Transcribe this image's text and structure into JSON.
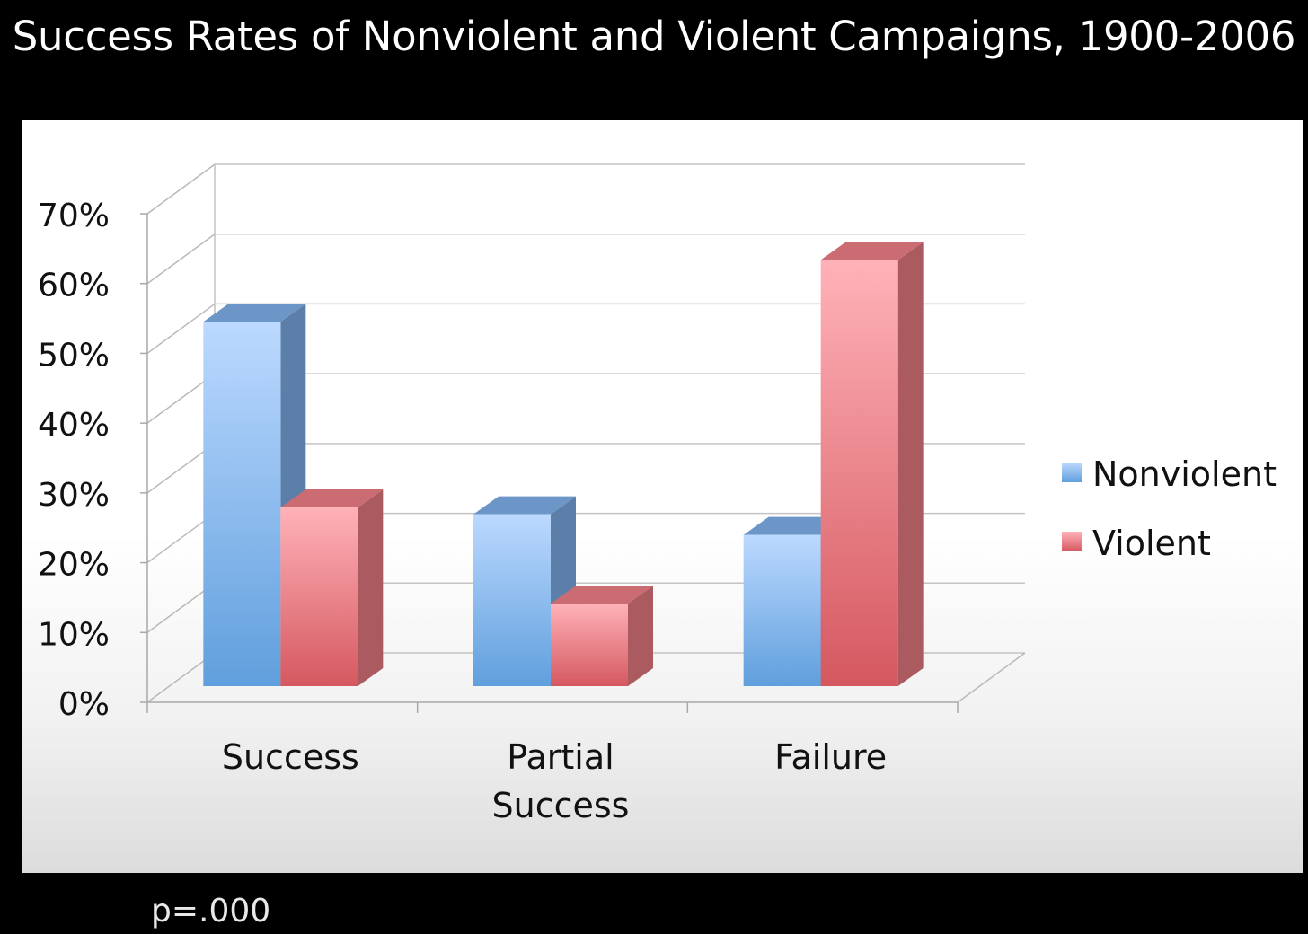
{
  "chart_data": {
    "type": "bar",
    "title": "Success Rates of Nonviolent and Violent Campaigns, 1900-2006",
    "categories": [
      "Success",
      "Partial\nSuccess",
      "Failure"
    ],
    "series": [
      {
        "name": "Nonviolent",
        "values": [
          53,
          25,
          22
        ],
        "color": "#7fb0ea"
      },
      {
        "name": "Violent",
        "values": [
          26,
          12,
          62
        ],
        "color": "#ee7f85"
      }
    ],
    "yticks": [
      "0%",
      "10%",
      "20%",
      "30%",
      "40%",
      "50%",
      "60%",
      "70%"
    ],
    "ylim": [
      0,
      70
    ],
    "grid": true,
    "legend": "right",
    "style": "3d-clustered-column"
  },
  "footnote": "p=.000"
}
